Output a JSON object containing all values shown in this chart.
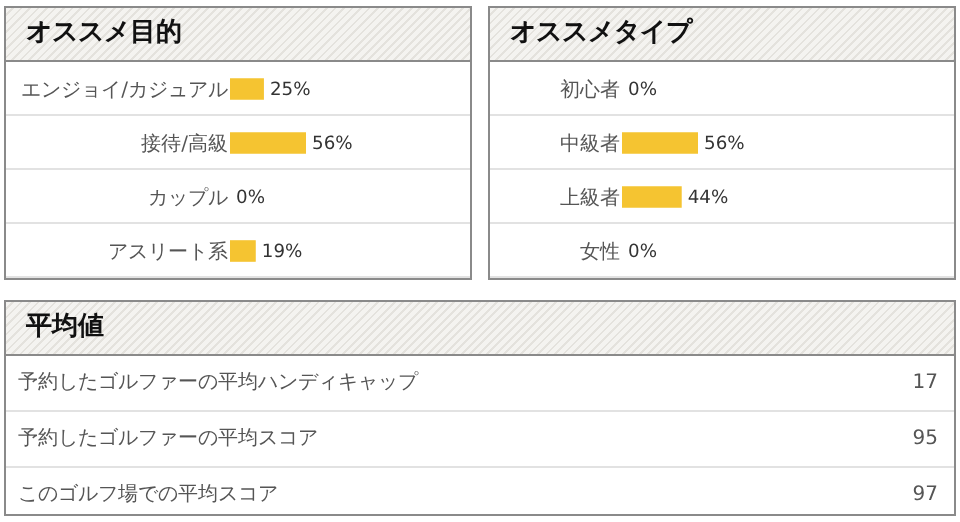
{
  "chart_data": [
    {
      "type": "bar",
      "orientation": "horizontal",
      "title": "オススメ目的",
      "categories": [
        "エンジョイ/カジュアル",
        "接待/高級",
        "カップル",
        "アスリート系"
      ],
      "values": [
        25,
        56,
        0,
        19
      ],
      "value_labels": [
        "25%",
        "56%",
        "0%",
        "19%"
      ],
      "color": "#f5c431",
      "tick_labels": "y",
      "grid": false,
      "legend": false
    },
    {
      "type": "bar",
      "orientation": "horizontal",
      "title": "オススメタイプ",
      "categories": [
        "初心者",
        "中級者",
        "上級者",
        "女性"
      ],
      "values": [
        0,
        56,
        44,
        0
      ],
      "value_labels": [
        "0%",
        "56%",
        "44%",
        "0%"
      ],
      "color": "#f5c431",
      "tick_labels": "y",
      "grid": false,
      "legend": false
    },
    {
      "type": "other",
      "title": "平均値",
      "categories": [
        "予約したゴルファーの平均ハンディキャップ",
        "予約したゴルファーの平均スコア",
        "このゴルフ場での平均スコア"
      ],
      "values": [
        17,
        95,
        97
      ],
      "data_labels": true
    }
  ]
}
